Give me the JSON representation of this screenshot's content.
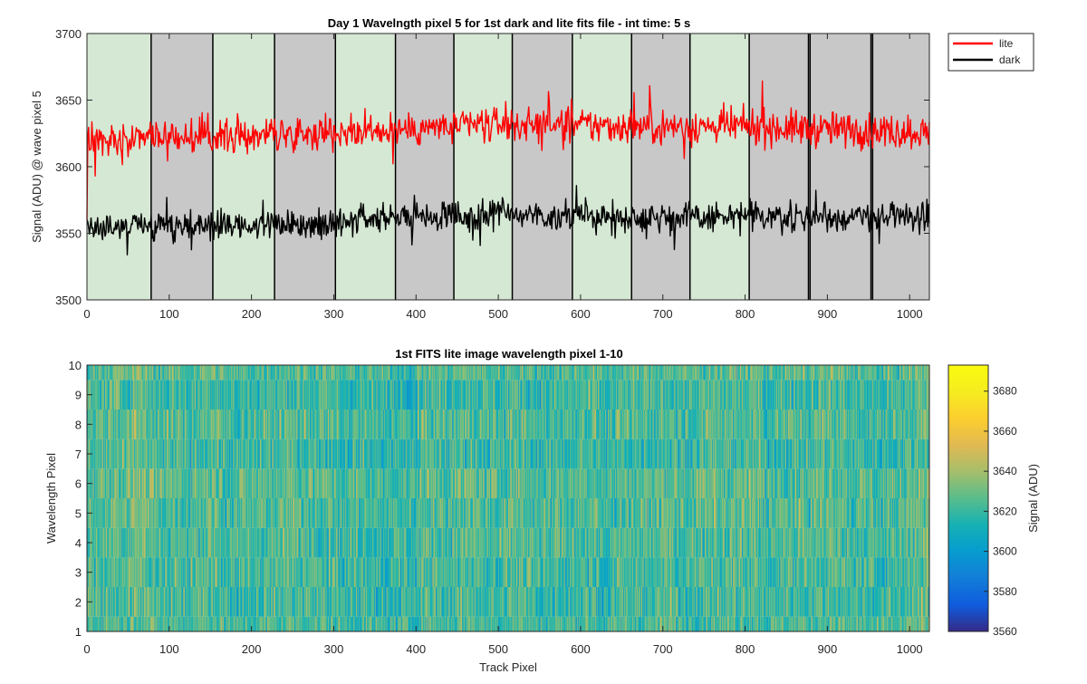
{
  "chart_data": [
    {
      "type": "line",
      "title": "Day 1 Wavelngth pixel 5 for 1st dark and lite fits file - int time: 5 s",
      "xlabel": "",
      "ylabel": "Signal (ADU) @ wave pixel 5",
      "xlim": [
        0,
        1024
      ],
      "ylim": [
        3500,
        3700
      ],
      "xticks": [
        0,
        100,
        200,
        300,
        400,
        500,
        600,
        700,
        800,
        900,
        1000
      ],
      "yticks": [
        3500,
        3550,
        3600,
        3650,
        3700
      ],
      "legend_position": "outside-top-right",
      "grid": false,
      "background_bands": {
        "boundaries": [
          0,
          78,
          153,
          228,
          302,
          375,
          446,
          517,
          590,
          662,
          733,
          805,
          877,
          879,
          953,
          955,
          1024
        ],
        "colors": [
          "#d5e8d4",
          "#c8c8c8"
        ]
      },
      "series": [
        {
          "name": "lite",
          "color": "#ff0000",
          "start_value": 3560,
          "baseline": [
            [
              0,
              3620
            ],
            [
              100,
              3622
            ],
            [
              200,
              3624
            ],
            [
              300,
              3626
            ],
            [
              400,
              3628
            ],
            [
              500,
              3632
            ],
            [
              600,
              3631
            ],
            [
              700,
              3630
            ],
            [
              800,
              3630
            ],
            [
              900,
              3628
            ],
            [
              1024,
              3626
            ]
          ],
          "noise_amplitude": 12
        },
        {
          "name": "dark",
          "color": "#000000",
          "baseline": [
            [
              0,
              3554
            ],
            [
              100,
              3556
            ],
            [
              200,
              3556
            ],
            [
              300,
              3558
            ],
            [
              400,
              3562
            ],
            [
              500,
              3564
            ],
            [
              600,
              3563
            ],
            [
              700,
              3562
            ],
            [
              800,
              3562
            ],
            [
              900,
              3562
            ],
            [
              1024,
              3562
            ]
          ],
          "noise_amplitude": 10
        }
      ]
    },
    {
      "type": "heatmap",
      "title": "1st FITS lite image wavelength pixel 1-10",
      "xlabel": "Track Pixel",
      "ylabel": "Wavelength Pixel",
      "xlim": [
        0,
        1024
      ],
      "ylim": [
        1,
        10
      ],
      "xticks": [
        0,
        100,
        200,
        300,
        400,
        500,
        600,
        700,
        800,
        900,
        1000
      ],
      "yticks": [
        1,
        2,
        3,
        4,
        5,
        6,
        7,
        8,
        9,
        10
      ],
      "n_columns": 1024,
      "n_rows": 10,
      "value_mean": 3622,
      "value_spread": 18,
      "colormap": "parula",
      "colorbar": {
        "label": "Signal (ADU)",
        "range": [
          3560,
          3693
        ],
        "ticks": [
          3560,
          3580,
          3600,
          3620,
          3640,
          3660,
          3680
        ]
      }
    }
  ]
}
